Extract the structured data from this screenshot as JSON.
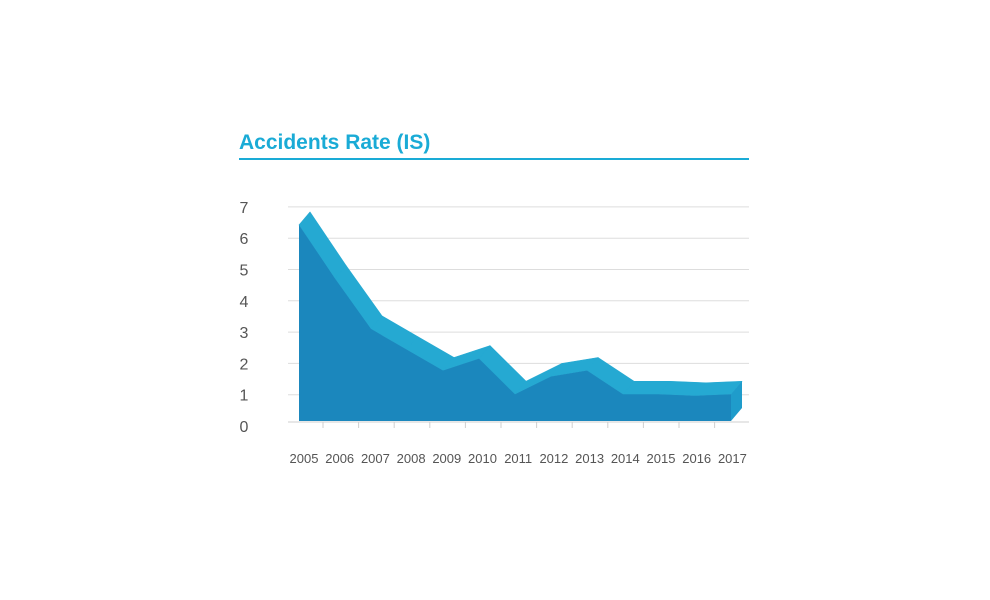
{
  "chart_data": {
    "type": "area",
    "title": "Accidents Rate (IS)",
    "xlabel": "",
    "ylabel": "",
    "categories": [
      "2005",
      "2006",
      "2007",
      "2008",
      "2009",
      "2010",
      "2011",
      "2012",
      "2013",
      "2014",
      "2015",
      "2016",
      "2017"
    ],
    "values": [
      6.6,
      4.8,
      3.1,
      2.4,
      1.7,
      2.1,
      0.9,
      1.5,
      1.7,
      0.9,
      0.9,
      0.85,
      0.9
    ],
    "ylim": [
      0,
      7
    ],
    "yticks": [
      "0",
      "1",
      "2",
      "3",
      "4",
      "5",
      "6",
      "7"
    ],
    "grid": true,
    "colors": {
      "area_front": "#1b87bd",
      "area_top": "#25a9d2",
      "area_side": "#1f9ccb",
      "title": "#1aabd6",
      "grid": "#dddddd"
    }
  }
}
